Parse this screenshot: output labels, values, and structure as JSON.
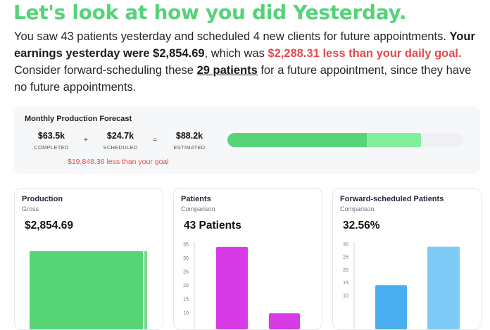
{
  "headline": "Let's look at how you did Yesterday.",
  "summary": {
    "part1": "You saw 43 patients yesterday and scheduled 4 new clients for future appointments. ",
    "earnings": "Your earnings yesterday were $2,854.69",
    "part2": ", which was ",
    "shortfall": "$2,288.31 less than your daily goal.",
    "part3": " Consider forward-scheduling these ",
    "link": "29 patients",
    "part4": " for a future appointment, since they have no future appointments."
  },
  "forecast": {
    "title": "Monthly Production Forecast",
    "completed": {
      "value": "$63.5k",
      "label": "COMPLETED"
    },
    "plus": "+",
    "scheduled": {
      "value": "$24.7k",
      "label": "SCHEDULED"
    },
    "equals": "=",
    "estimated": {
      "value": "$88.2k",
      "label": "ESTIMATED"
    },
    "goal_message": "$19,848.36 less than your goal",
    "progress": {
      "completed_fraction": 0.59,
      "scheduled_fraction": 0.23
    },
    "colors": {
      "completed": "#57d576",
      "scheduled": "#84ee9f",
      "track": "#eef0f3"
    }
  },
  "cards": [
    {
      "title": "Production",
      "subtitle": "Gross",
      "value": "$2,854.69",
      "chart_data": {
        "type": "bar",
        "bars": [
          {
            "value": 1.0,
            "color": "#57d576"
          },
          {
            "value": 1.0,
            "color": "#57d576",
            "thin": true
          }
        ]
      }
    },
    {
      "title": "Patients",
      "subtitle": "Comparison",
      "value": "43 Patients",
      "chart_data": {
        "type": "bar",
        "yticks": [
          "35",
          "30",
          "25",
          "20",
          "15",
          "10"
        ],
        "ylim": [
          0,
          35
        ],
        "bars": [
          {
            "value": 34,
            "color": "#d63be6"
          },
          {
            "value": 9.8,
            "color": "#d63be6"
          }
        ]
      }
    },
    {
      "title": "Forward-scheduled Patients",
      "subtitle": "Comparison",
      "value": "32.56%",
      "chart_data": {
        "type": "bar",
        "yticks": [
          "30",
          "25",
          "20",
          "15",
          "10"
        ],
        "ylim": [
          0,
          30
        ],
        "bars": [
          {
            "value": 14,
            "color": "#4aaef0"
          },
          {
            "value": 29,
            "color": "#7dcbf6"
          }
        ]
      }
    }
  ]
}
